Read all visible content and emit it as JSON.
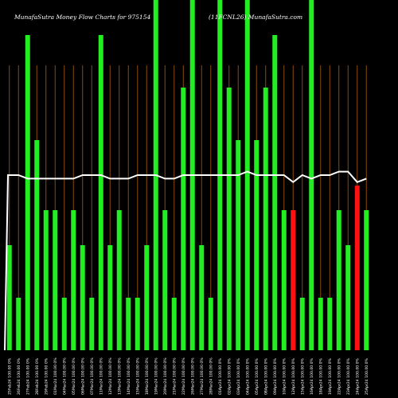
{
  "chart_data": {
    "type": "bar",
    "title_left": "MunafaSutra  Money Flow  Charts for 975154",
    "title_right": "(11FCNL26) MunafaSutra.com",
    "ylim": [
      0,
      100
    ],
    "colors": {
      "up": "#22ee22",
      "down": "#ff1111",
      "line": "#ffffff",
      "grid": "#8a4a0c",
      "background": "#000000"
    },
    "categories": [
      "25Feb24 100.00 0%",
      "26Feb24 100.00 0%",
      "27Feb24 100.00 0%",
      "28Feb24 100.00 0%",
      "29Feb24 100.00 0%",
      "01Mar24 100.00 0%",
      "04Mar24 100.00 0%",
      "05Mar24 100.00 0%",
      "06Mar24 100.00 0%",
      "07Mar24 100.00 0%",
      "11Mar24 100.00 0%",
      "12Mar24 100.00 0%",
      "13Mar24 100.00 0%",
      "14Mar24 100.00 0%",
      "15Mar24 100.00 0%",
      "18Mar24 100.00 0%",
      "19Mar24 100.00 0%",
      "20Mar24 100.00 0%",
      "21Mar24 100.00 0%",
      "22Mar24 100.00 0%",
      "26Mar24 100.00 0%",
      "27Mar24 100.00 0%",
      "28Mar24 100.00 0%",
      "01Apr24 100.00 0%",
      "02Apr24 100.00 0%",
      "03Apr24 100.00 0%",
      "04Apr24 100.00 0%",
      "05Apr24 100.00 0%",
      "08Apr24 100.00 0%",
      "09Apr24 100.00 0%",
      "10Apr24 100.00 0%",
      "12Apr24 100.00 0%",
      "15Apr24 100.00 0%",
      "16Apr24 100.00 0%",
      "18Apr24 100.00 0%",
      "19Apr24 100.00 0%",
      "22Apr24 100.00 0%",
      "23Apr24 100.00 0%",
      "24Apr24 100.00 0%",
      "25Apr24 100.00 0%"
    ],
    "values": [
      30,
      15,
      90,
      60,
      40,
      40,
      15,
      40,
      30,
      15,
      90,
      30,
      40,
      15,
      15,
      30,
      100,
      40,
      15,
      75,
      100,
      30,
      15,
      100,
      75,
      60,
      100,
      60,
      75,
      90,
      40,
      40,
      15,
      100,
      15,
      15,
      40,
      30,
      47,
      40
    ],
    "up": [
      true,
      true,
      true,
      true,
      true,
      true,
      true,
      true,
      true,
      true,
      true,
      true,
      true,
      true,
      true,
      true,
      true,
      true,
      true,
      true,
      true,
      true,
      true,
      true,
      true,
      true,
      true,
      true,
      true,
      true,
      true,
      false,
      true,
      true,
      true,
      true,
      true,
      true,
      false,
      true
    ],
    "line": [
      50,
      50,
      49,
      49,
      49,
      49,
      49,
      49,
      50,
      50,
      50,
      49,
      49,
      49,
      50,
      50,
      50,
      49,
      49,
      50,
      50,
      50,
      50,
      50,
      50,
      50,
      51,
      50,
      50,
      50,
      50,
      48,
      50,
      49,
      50,
      50,
      51,
      51,
      48,
      49
    ]
  }
}
